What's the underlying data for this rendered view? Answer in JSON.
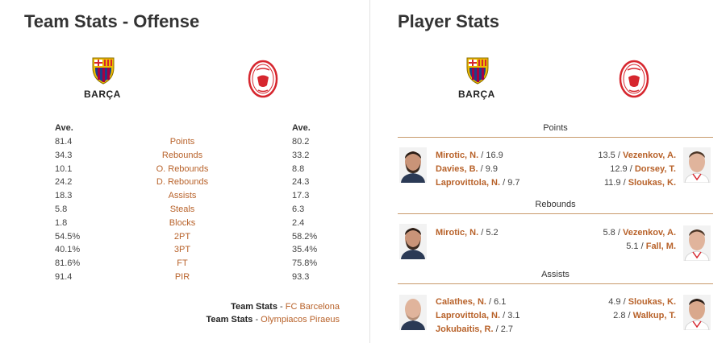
{
  "team_stats": {
    "title": "Team Stats - Offense",
    "home_name": "BARÇA",
    "home_header": "Ave.",
    "away_header": "Ave.",
    "rows": [
      {
        "label": "Points",
        "home": "81.4",
        "away": "80.2"
      },
      {
        "label": "Rebounds",
        "home": "34.3",
        "away": "33.2"
      },
      {
        "label": "O. Rebounds",
        "home": "10.1",
        "away": "8.8"
      },
      {
        "label": "D. Rebounds",
        "home": "24.2",
        "away": "24.3"
      },
      {
        "label": "Assists",
        "home": "18.3",
        "away": "17.3"
      },
      {
        "label": "Steals",
        "home": "5.8",
        "away": "6.3"
      },
      {
        "label": "Blocks",
        "home": "1.8",
        "away": "2.4"
      },
      {
        "label": "2PT",
        "home": "54.5%",
        "away": "58.2%"
      },
      {
        "label": "3PT",
        "home": "40.1%",
        "away": "35.4%"
      },
      {
        "label": "FT",
        "home": "81.6%",
        "away": "75.8%"
      },
      {
        "label": "PIR",
        "home": "91.4",
        "away": "93.3"
      }
    ],
    "links": [
      {
        "prefix": "Team Stats",
        "sep": " - ",
        "name": "FC Barcelona"
      },
      {
        "prefix": "Team Stats",
        "sep": " - ",
        "name": "Olympiacos Piraeus"
      }
    ]
  },
  "player_stats": {
    "title": "Player Stats",
    "home_name": "BARÇA",
    "sections": [
      {
        "label": "Points",
        "home": [
          {
            "name": "Mirotic, N.",
            "value": " / 16.9"
          },
          {
            "name": "Davies, B.",
            "value": " / 9.9"
          },
          {
            "name": "Laprovittola, N.",
            "value": " / 9.7"
          }
        ],
        "away": [
          {
            "value": "13.5 / ",
            "name": "Vezenkov, A."
          },
          {
            "value": "12.9 / ",
            "name": "Dorsey, T."
          },
          {
            "value": "11.9 / ",
            "name": "Sloukas, K."
          }
        ]
      },
      {
        "label": "Rebounds",
        "home": [
          {
            "name": "Mirotic, N.",
            "value": " / 5.2"
          }
        ],
        "away": [
          {
            "value": "5.8 / ",
            "name": "Vezenkov, A."
          },
          {
            "value": "5.1 / ",
            "name": "Fall, M."
          }
        ]
      },
      {
        "label": "Assists",
        "home": [
          {
            "name": "Calathes, N.",
            "value": " / 6.1"
          },
          {
            "name": "Laprovittola, N.",
            "value": " / 3.1"
          },
          {
            "name": "Jokubaitis, R.",
            "value": " / 2.7"
          }
        ],
        "away": [
          {
            "value": "4.9 / ",
            "name": "Sloukas, K."
          },
          {
            "value": "2.8 / ",
            "name": "Walkup, T."
          }
        ]
      }
    ]
  },
  "colors": {
    "accent": "#b8622a",
    "barca_blue": "#1d3f8a",
    "barca_red": "#a50044",
    "barca_gold": "#edbb00",
    "oly_red": "#d6262e"
  }
}
